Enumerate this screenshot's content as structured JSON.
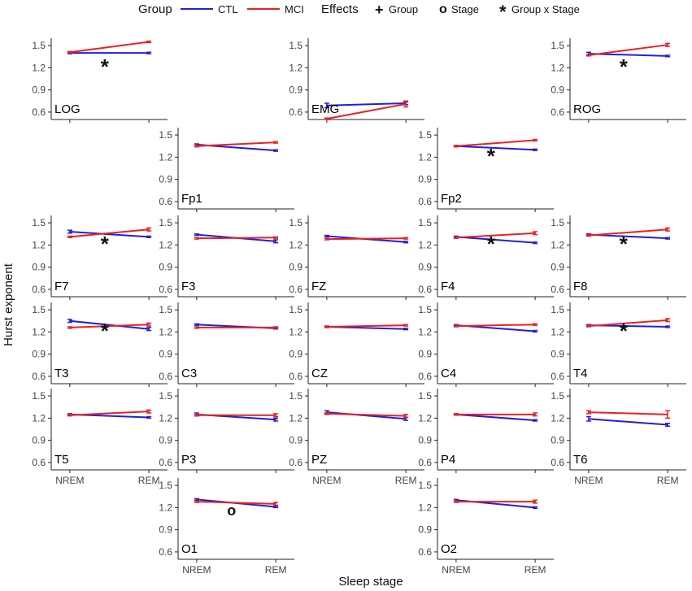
{
  "chart_data": {
    "type": "line",
    "y_axis_title": "Hurst exponent",
    "x_axis_title": "Sleep stage",
    "categories": [
      "NREM",
      "REM"
    ],
    "ylim": [
      0.5,
      1.6
    ],
    "yticks": [
      0.6,
      0.9,
      1.2,
      1.5
    ],
    "ytick_labels": [
      "0.6",
      "0.9",
      "1.2",
      "1.5"
    ],
    "colors": {
      "CTL": "#1f1fdd",
      "MCI": "#ee1f1f",
      "effect": "#228b22"
    },
    "legend": {
      "group_title": "Group",
      "groups": [
        "CTL",
        "MCI"
      ],
      "effects_title": "Effects",
      "effects": [
        {
          "symbol": "+",
          "label": "Group"
        },
        {
          "symbol": "o",
          "label": "Stage"
        },
        {
          "symbol": "*",
          "label": "Group x Stage"
        }
      ]
    },
    "panels": [
      {
        "name": "LOG",
        "row": 0,
        "col": 0,
        "CTL": [
          1.4,
          1.4
        ],
        "MCI": [
          1.41,
          1.55
        ],
        "err_ctl": [
          0.01,
          0.01
        ],
        "err_mci": [
          0.01,
          0.01
        ],
        "effect": "*",
        "xlabels": false
      },
      {
        "name": "EMG",
        "row": 0,
        "col": 2,
        "CTL": [
          0.69,
          0.72
        ],
        "MCI": [
          0.51,
          0.71
        ],
        "err_ctl": [
          0.03,
          0.02
        ],
        "err_mci": [
          0.01,
          0.04
        ],
        "effect": "",
        "xlabels": false
      },
      {
        "name": "ROG",
        "row": 0,
        "col": 4,
        "CTL": [
          1.39,
          1.36
        ],
        "MCI": [
          1.37,
          1.51
        ],
        "err_ctl": [
          0.02,
          0.01
        ],
        "err_mci": [
          0.01,
          0.02
        ],
        "effect": "*",
        "xlabels": false
      },
      {
        "name": "Fp1",
        "row": 1,
        "col": 1,
        "CTL": [
          1.37,
          1.29
        ],
        "MCI": [
          1.35,
          1.4
        ],
        "err_ctl": [
          0.01,
          0.01
        ],
        "err_mci": [
          0.01,
          0.01
        ],
        "effect": "",
        "xlabels": false
      },
      {
        "name": "Fp2",
        "row": 1,
        "col": 3,
        "CTL": [
          1.35,
          1.3
        ],
        "MCI": [
          1.35,
          1.43
        ],
        "err_ctl": [
          0.01,
          0.01
        ],
        "err_mci": [
          0.01,
          0.01
        ],
        "effect": "*",
        "xlabels": false
      },
      {
        "name": "F7",
        "row": 2,
        "col": 0,
        "CTL": [
          1.38,
          1.31
        ],
        "MCI": [
          1.31,
          1.41
        ],
        "err_ctl": [
          0.02,
          0.01
        ],
        "err_mci": [
          0.01,
          0.02
        ],
        "effect": "*",
        "xlabels": false
      },
      {
        "name": "F3",
        "row": 2,
        "col": 1,
        "CTL": [
          1.34,
          1.25
        ],
        "MCI": [
          1.29,
          1.3
        ],
        "err_ctl": [
          0.01,
          0.02
        ],
        "err_mci": [
          0.01,
          0.01
        ],
        "effect": "",
        "xlabels": false
      },
      {
        "name": "FZ",
        "row": 2,
        "col": 2,
        "CTL": [
          1.32,
          1.24
        ],
        "MCI": [
          1.28,
          1.29
        ],
        "err_ctl": [
          0.01,
          0.01
        ],
        "err_mci": [
          0.01,
          0.01
        ],
        "effect": "",
        "xlabels": false
      },
      {
        "name": "F4",
        "row": 2,
        "col": 3,
        "CTL": [
          1.31,
          1.23
        ],
        "MCI": [
          1.3,
          1.36
        ],
        "err_ctl": [
          0.01,
          0.01
        ],
        "err_mci": [
          0.01,
          0.02
        ],
        "effect": "*",
        "xlabels": false
      },
      {
        "name": "F8",
        "row": 2,
        "col": 4,
        "CTL": [
          1.34,
          1.29
        ],
        "MCI": [
          1.33,
          1.41
        ],
        "err_ctl": [
          0.01,
          0.01
        ],
        "err_mci": [
          0.01,
          0.02
        ],
        "effect": "*",
        "xlabels": false
      },
      {
        "name": "T3",
        "row": 3,
        "col": 0,
        "CTL": [
          1.35,
          1.24
        ],
        "MCI": [
          1.26,
          1.3
        ],
        "err_ctl": [
          0.02,
          0.02
        ],
        "err_mci": [
          0.01,
          0.02
        ],
        "effect": "*",
        "xlabels": false
      },
      {
        "name": "C3",
        "row": 3,
        "col": 1,
        "CTL": [
          1.3,
          1.25
        ],
        "MCI": [
          1.26,
          1.26
        ],
        "err_ctl": [
          0.01,
          0.01
        ],
        "err_mci": [
          0.01,
          0.01
        ],
        "effect": "",
        "xlabels": false
      },
      {
        "name": "CZ",
        "row": 3,
        "col": 2,
        "CTL": [
          1.27,
          1.24
        ],
        "MCI": [
          1.27,
          1.29
        ],
        "err_ctl": [
          0.01,
          0.01
        ],
        "err_mci": [
          0.01,
          0.01
        ],
        "effect": "",
        "xlabels": false
      },
      {
        "name": "C4",
        "row": 3,
        "col": 3,
        "CTL": [
          1.29,
          1.21
        ],
        "MCI": [
          1.28,
          1.3
        ],
        "err_ctl": [
          0.01,
          0.01
        ],
        "err_mci": [
          0.01,
          0.01
        ],
        "effect": "",
        "xlabels": false
      },
      {
        "name": "T4",
        "row": 3,
        "col": 4,
        "CTL": [
          1.29,
          1.27
        ],
        "MCI": [
          1.28,
          1.36
        ],
        "err_ctl": [
          0.01,
          0.01
        ],
        "err_mci": [
          0.01,
          0.02
        ],
        "effect": "*",
        "xlabels": false
      },
      {
        "name": "T5",
        "row": 4,
        "col": 0,
        "CTL": [
          1.25,
          1.21
        ],
        "MCI": [
          1.24,
          1.29
        ],
        "err_ctl": [
          0.01,
          0.01
        ],
        "err_mci": [
          0.01,
          0.02
        ],
        "effect": "",
        "xlabels": true
      },
      {
        "name": "P3",
        "row": 4,
        "col": 1,
        "CTL": [
          1.25,
          1.18
        ],
        "MCI": [
          1.24,
          1.24
        ],
        "err_ctl": [
          0.02,
          0.02
        ],
        "err_mci": [
          0.01,
          0.02
        ],
        "effect": "",
        "xlabels": false
      },
      {
        "name": "PZ",
        "row": 4,
        "col": 2,
        "CTL": [
          1.28,
          1.19
        ],
        "MCI": [
          1.26,
          1.23
        ],
        "err_ctl": [
          0.02,
          0.02
        ],
        "err_mci": [
          0.01,
          0.02
        ],
        "effect": "",
        "xlabels": true
      },
      {
        "name": "P4",
        "row": 4,
        "col": 3,
        "CTL": [
          1.25,
          1.17
        ],
        "MCI": [
          1.25,
          1.25
        ],
        "err_ctl": [
          0.01,
          0.01
        ],
        "err_mci": [
          0.01,
          0.02
        ],
        "effect": "",
        "xlabels": false
      },
      {
        "name": "T6",
        "row": 4,
        "col": 4,
        "CTL": [
          1.19,
          1.11
        ],
        "MCI": [
          1.28,
          1.25
        ],
        "err_ctl": [
          0.03,
          0.02
        ],
        "err_mci": [
          0.02,
          0.05
        ],
        "effect": "",
        "xlabels": true
      },
      {
        "name": "O1",
        "row": 5,
        "col": 1,
        "CTL": [
          1.31,
          1.21
        ],
        "MCI": [
          1.28,
          1.25
        ],
        "err_ctl": [
          0.01,
          0.01
        ],
        "err_mci": [
          0.01,
          0.02
        ],
        "effect": "o",
        "xlabels": true
      },
      {
        "name": "O2",
        "row": 5,
        "col": 3,
        "CTL": [
          1.3,
          1.2
        ],
        "MCI": [
          1.28,
          1.28
        ],
        "err_ctl": [
          0.01,
          0.01
        ],
        "err_mci": [
          0.01,
          0.02
        ],
        "effect": "",
        "xlabels": true
      }
    ]
  }
}
